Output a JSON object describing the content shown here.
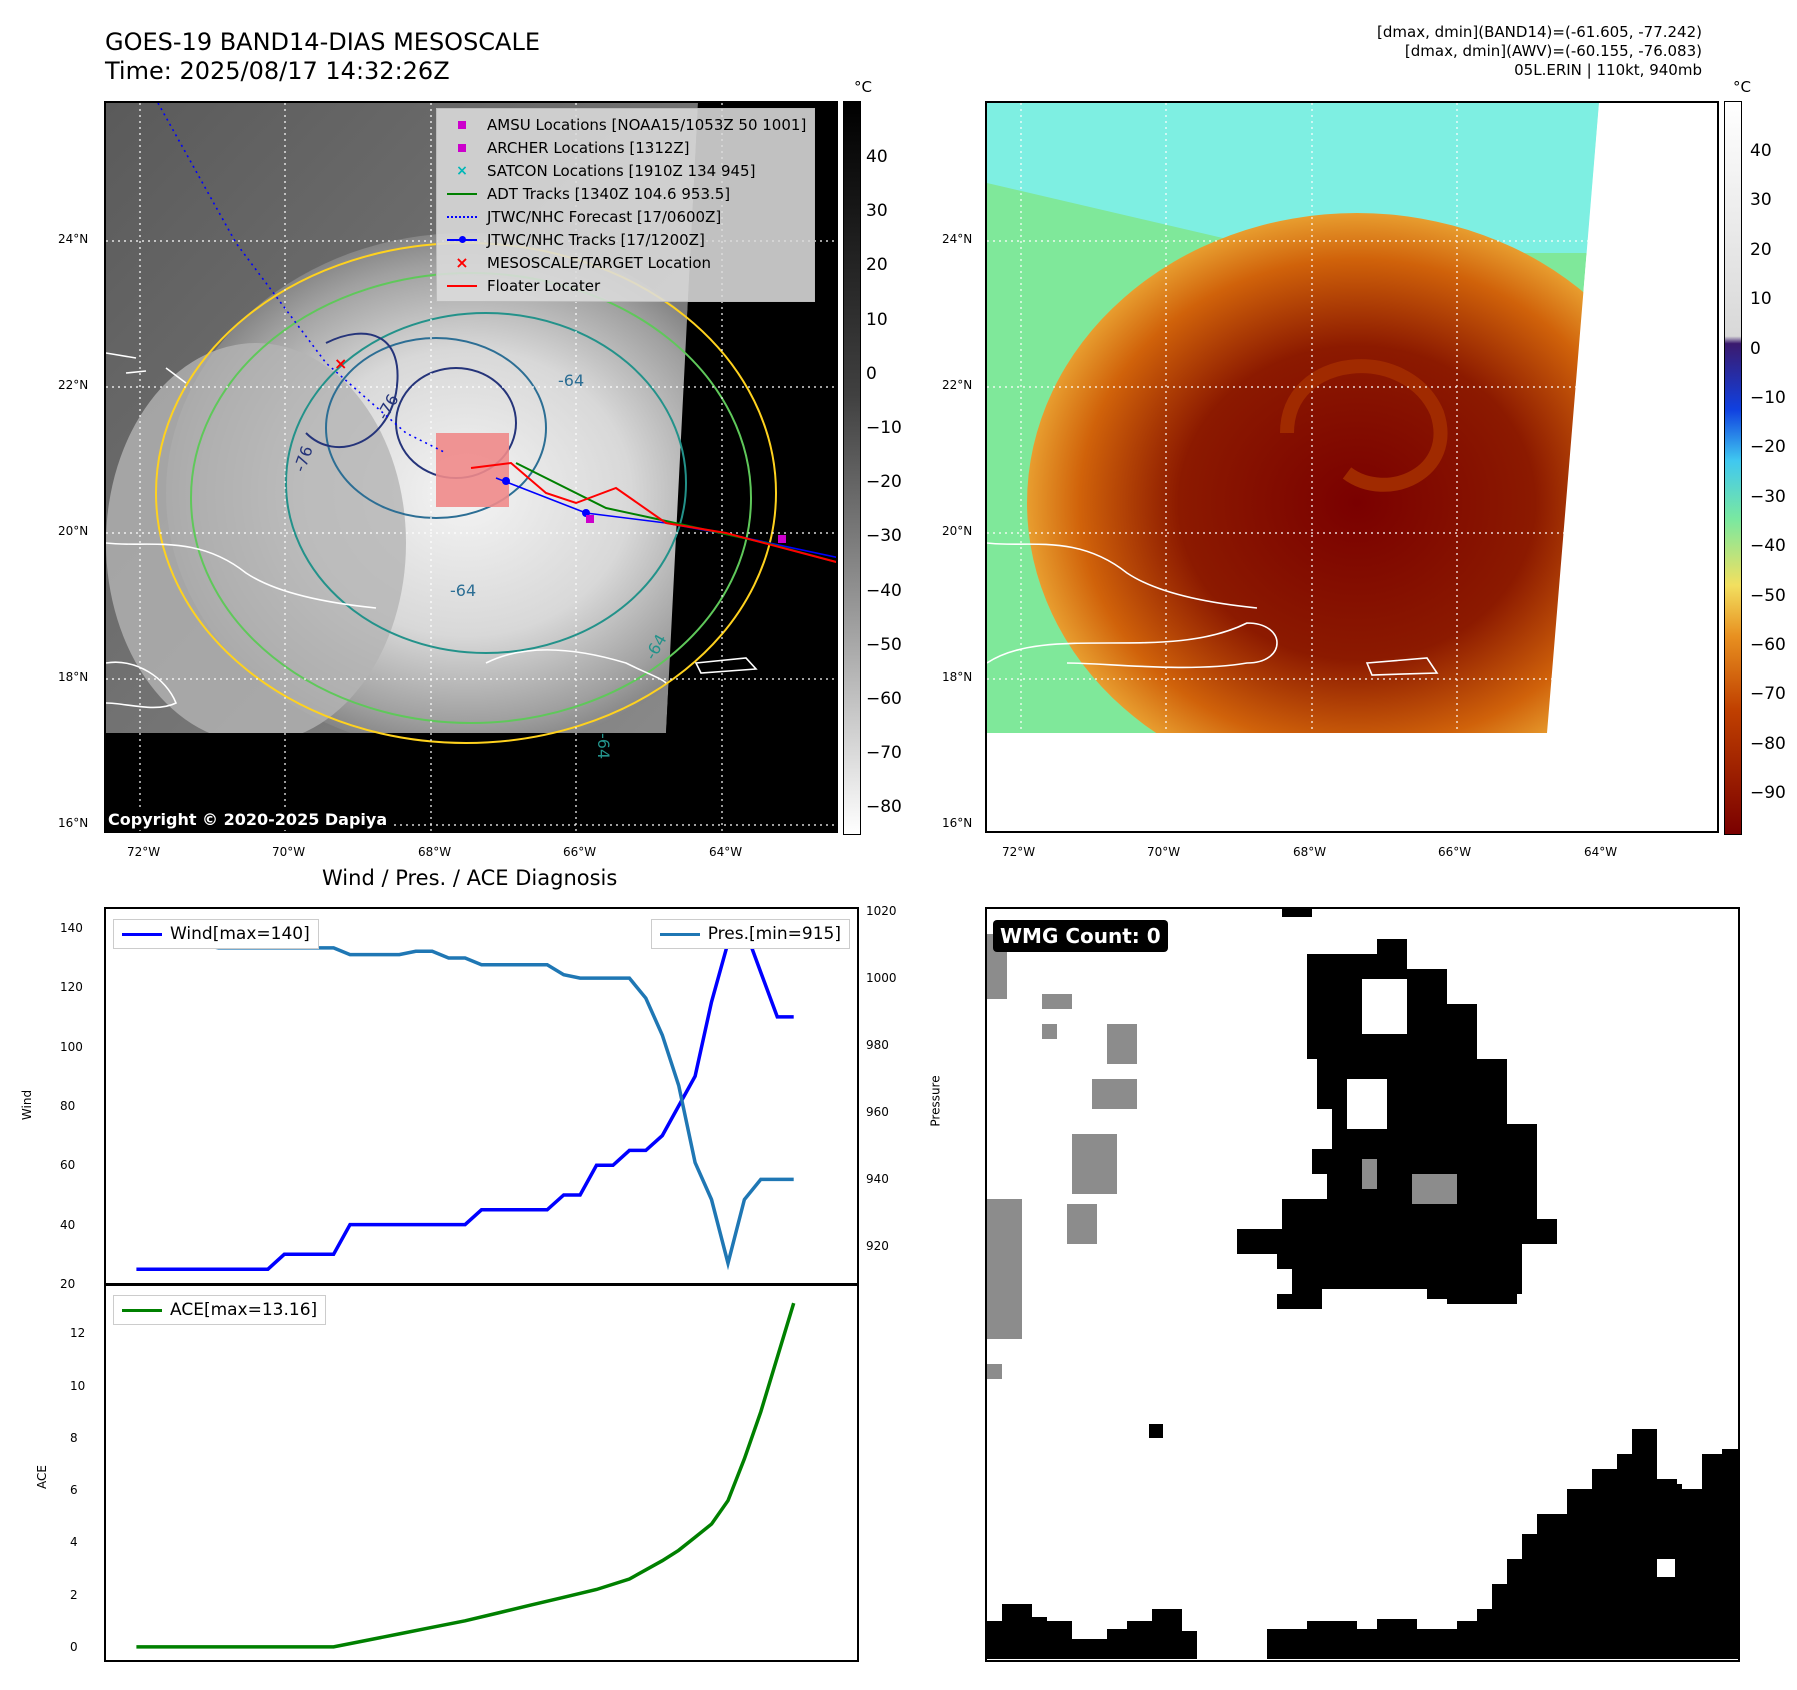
{
  "header": {
    "title_line1": "GOES-19 BAND14-DIAS MESOSCALE",
    "title_line2": "Time: 2025/08/17 14:32:26Z",
    "stat_line1": "[dmax, dmin](BAND14)=(-61.605, -77.242)",
    "stat_line2": "[dmax, dmin](AWV)=(-60.155, -76.083)",
    "stat_line3": "05L.ERIN | 110kt, 940mb"
  },
  "map": {
    "lat_labels": [
      "24°N",
      "22°N",
      "20°N",
      "18°N",
      "16°N"
    ],
    "lon_labels": [
      "72°W",
      "70°W",
      "68°W",
      "66°W",
      "64°W"
    ],
    "copyright": "Copyright © 2020-2025 Dapiya",
    "contour_labels": [
      "-76",
      "-76",
      "-64",
      "-64",
      "-64",
      "-64"
    ],
    "legend": [
      {
        "label": "AMSU Locations [NOAA15/1053Z 50 1001]",
        "icon": "magenta-square",
        "color": "#cc00cc"
      },
      {
        "label": "ARCHER Locations [1312Z]",
        "icon": "magenta-square",
        "color": "#cc00cc"
      },
      {
        "label": "SATCON Locations [1910Z 134 945]",
        "icon": "cyan-x",
        "color": "#00b7b7"
      },
      {
        "label": "ADT Tracks [1340Z 104.6 953.5]",
        "icon": "green-line",
        "color": "#008000"
      },
      {
        "label": "JTWC/NHC Forecast [17/0600Z]",
        "icon": "blue-dotted-line",
        "color": "#0000ff"
      },
      {
        "label": "JTWC/NHC Tracks [17/1200Z]",
        "icon": "blue-line-dot",
        "color": "#0000ff"
      },
      {
        "label": "MESOSCALE/TARGET Location",
        "icon": "red-x",
        "color": "#ff0000"
      },
      {
        "label": "Floater Locater",
        "icon": "red-line",
        "color": "#ff0000"
      }
    ]
  },
  "colorbar_left": {
    "unit": "°C",
    "ticks": [
      "40",
      "30",
      "20",
      "10",
      "0",
      "−10",
      "−20",
      "−30",
      "−40",
      "−50",
      "−60",
      "−70",
      "−80"
    ]
  },
  "colorbar_right": {
    "unit": "°C",
    "ticks": [
      "40",
      "30",
      "20",
      "10",
      "0",
      "−10",
      "−20",
      "−30",
      "−40",
      "−50",
      "−60",
      "−70",
      "−80",
      "−90"
    ]
  },
  "wmg": {
    "label": "WMG Count: 0"
  },
  "chart_data": [
    {
      "type": "line",
      "title": "Wind / Pres. / ACE Diagnosis",
      "ylabel": "Wind",
      "ylabel2": "Pressure",
      "ylim": [
        20,
        145
      ],
      "ylim2": [
        910,
        1020
      ],
      "yticks": [
        "140",
        "120",
        "100",
        "80",
        "60",
        "40",
        "20"
      ],
      "yticks2": [
        "1020",
        "1000",
        "980",
        "960",
        "940",
        "920"
      ],
      "series": [
        {
          "name": "Wind[max=140]",
          "color": "#0000ff",
          "axis": "left",
          "x": [
            0,
            2,
            3,
            4,
            5,
            6,
            7,
            8,
            9,
            10,
            11,
            12,
            13,
            14,
            15,
            16,
            17,
            18,
            19,
            20,
            21,
            22,
            23,
            24,
            25,
            26,
            27,
            28,
            29,
            30,
            31,
            32,
            33,
            34,
            35,
            36,
            37,
            38,
            39,
            40
          ],
          "values": [
            25,
            25,
            25,
            25,
            25,
            25,
            25,
            25,
            30,
            30,
            30,
            30,
            40,
            40,
            40,
            40,
            40,
            40,
            40,
            40,
            45,
            45,
            45,
            45,
            45,
            50,
            50,
            60,
            60,
            65,
            65,
            70,
            80,
            90,
            115,
            135,
            140,
            125,
            110,
            110
          ]
        },
        {
          "name": "Pres.[min=915]",
          "color": "#1f77b4",
          "axis": "right",
          "x": [
            0,
            2,
            3,
            4,
            5,
            6,
            7,
            8,
            9,
            10,
            11,
            12,
            13,
            14,
            15,
            16,
            17,
            18,
            19,
            20,
            21,
            22,
            23,
            24,
            25,
            26,
            27,
            28,
            29,
            30,
            31,
            32,
            33,
            34,
            35,
            36,
            37,
            38,
            39,
            40
          ],
          "values": [
            1016,
            1016,
            1011,
            1010,
            1009,
            1009,
            1009,
            1009,
            1009,
            1009,
            1009,
            1009,
            1007,
            1007,
            1007,
            1007,
            1008,
            1008,
            1006,
            1006,
            1004,
            1004,
            1004,
            1004,
            1004,
            1001,
            1000,
            1000,
            1000,
            1000,
            994,
            983,
            968,
            945,
            934,
            915,
            934,
            940,
            940,
            940
          ]
        }
      ]
    },
    {
      "type": "line",
      "ylabel": "ACE",
      "ylim": [
        -0.5,
        13.7
      ],
      "yticks": [
        "12",
        "10",
        "8",
        "6",
        "4",
        "2",
        "0"
      ],
      "series": [
        {
          "name": "ACE[max=13.16]",
          "color": "#008000",
          "x": [
            0,
            2,
            4,
            6,
            8,
            10,
            12,
            14,
            16,
            18,
            20,
            22,
            24,
            26,
            28,
            30,
            32,
            33,
            34,
            35,
            36,
            37,
            38,
            40
          ],
          "values": [
            0,
            0,
            0,
            0,
            0,
            0,
            0,
            0.25,
            0.5,
            0.75,
            1.0,
            1.3,
            1.6,
            1.9,
            2.2,
            2.6,
            3.3,
            3.7,
            4.2,
            4.7,
            5.6,
            7.2,
            9.0,
            13.16
          ]
        }
      ]
    }
  ]
}
